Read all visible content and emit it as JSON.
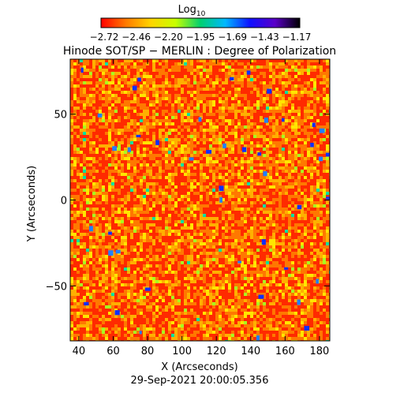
{
  "colorbar": {
    "label_base": "Log",
    "label_sub": "10",
    "tick_labels": [
      "−2.72",
      "−2.46",
      "−2.20",
      "−1.95",
      "−1.69",
      "−1.43",
      "−1.17"
    ],
    "colors": [
      "#ff0000",
      "#ff7a00",
      "#ffd400",
      "#c8ff00",
      "#00d070",
      "#00b8ff",
      "#1010ff",
      "#5a00c8",
      "#000000"
    ]
  },
  "chart_data": {
    "type": "heatmap",
    "title": "Hinode SOT/SP − MERLIN : Degree of Polarization",
    "xlabel": "X (Arcseconds)",
    "ylabel": "Y (Arcseconds)",
    "xlim": [
      35,
      186
    ],
    "ylim": [
      -82,
      82
    ],
    "xticks": [
      40,
      60,
      80,
      100,
      120,
      140,
      160,
      180
    ],
    "yticks": [
      -50,
      0,
      50
    ],
    "value_range_log10": [
      -2.72,
      -1.17
    ],
    "dominant_colors": [
      "#ff3a00",
      "#ff8c00",
      "#ffe600"
    ],
    "timestamp": "29-Sep-2021 20:00:05.356"
  }
}
